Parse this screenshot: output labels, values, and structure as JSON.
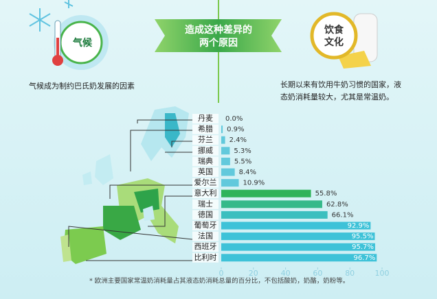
{
  "banner": {
    "lines": [
      "造成这种差异的",
      "两个原因"
    ]
  },
  "left": {
    "badge": "气候",
    "text": "气候成为制约巴氏奶发展的因素"
  },
  "right": {
    "badge": [
      "饮食",
      "文化"
    ],
    "text": [
      "长期以来有饮用牛奶习惯的国家，液",
      "态奶消耗量较大，尤其是常温奶。"
    ]
  },
  "footnote": "* 欧洲主要国家常温奶消耗量占其液态奶消耗总量的百分比，不包括酸奶，奶酪，奶粉等。",
  "chart_data": {
    "type": "hbar",
    "categories": [
      "丹麦",
      "希腊",
      "芬兰",
      "挪威",
      "瑞典",
      "英国",
      "爱尔兰",
      "意大利",
      "瑞士",
      "德国",
      "葡萄牙",
      "法国",
      "西班牙",
      "比利时"
    ],
    "values": [
      0.0,
      0.9,
      2.4,
      5.3,
      5.5,
      8.4,
      10.9,
      55.8,
      62.8,
      66.1,
      92.9,
      95.5,
      95.7,
      96.7
    ],
    "value_labels": [
      "0.0%",
      "0.9%",
      "2.4%",
      "5.3%",
      "5.5%",
      "8.4%",
      "10.9%",
      "55.8%",
      "62.8%",
      "66.1%",
      "92.9%",
      "95.5%",
      "95.7%",
      "96.7%"
    ],
    "colors": [
      "#62c9dc",
      "#62c9dc",
      "#62c9dc",
      "#62c9dc",
      "#62c9dc",
      "#62c9dc",
      "#62c9dc",
      "#2fb35a",
      "#35b98a",
      "#3bbfbf",
      "#3ec2d8",
      "#3ec2d8",
      "#3ec2d8",
      "#3ec2d8"
    ],
    "xlim": [
      0,
      100
    ],
    "xticks": [
      0,
      20,
      40,
      60,
      80,
      100
    ]
  }
}
